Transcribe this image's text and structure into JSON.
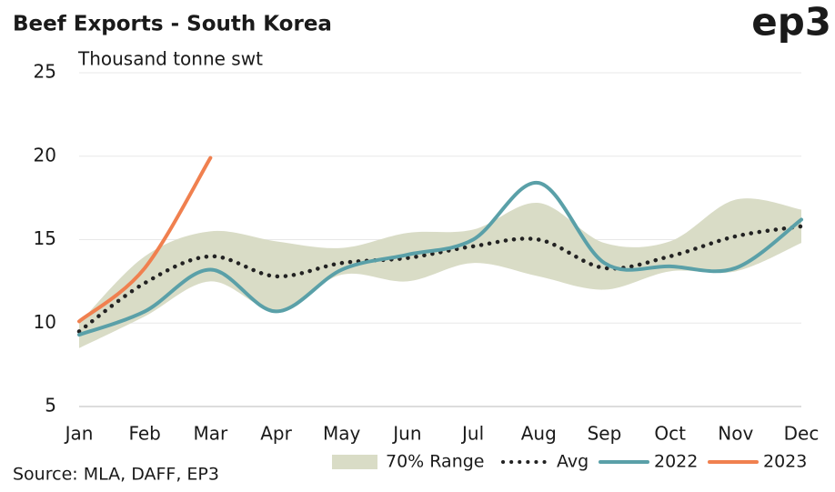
{
  "chart_data": {
    "type": "line",
    "title": "Beef Exports - South Korea",
    "subtitle": "Thousand tonne swt",
    "logo": "ep3",
    "source": "Source: MLA, DAFF, EP3",
    "categories": [
      "Jan",
      "Feb",
      "Mar",
      "Apr",
      "May",
      "Jun",
      "Jul",
      "Aug",
      "Sep",
      "Oct",
      "Nov",
      "Dec"
    ],
    "ylim": [
      5,
      25
    ],
    "yticks": [
      5,
      10,
      15,
      20,
      25
    ],
    "grid": true,
    "legend": "bottom",
    "series": [
      {
        "name": "70% Range",
        "color": "#d9dcc6",
        "lower": [
          8.5,
          10.4,
          12.5,
          10.8,
          12.9,
          12.5,
          13.6,
          12.8,
          12.0,
          13.1,
          13.1,
          14.8
        ],
        "upper": [
          10.0,
          14.0,
          15.5,
          14.9,
          14.5,
          15.4,
          15.6,
          17.2,
          14.8,
          14.9,
          17.4,
          16.8
        ]
      },
      {
        "name": "Avg",
        "color": "#222222",
        "dash": "dotted",
        "values": [
          9.5,
          12.4,
          14.0,
          12.8,
          13.6,
          13.9,
          14.6,
          15.0,
          13.3,
          14.0,
          15.2,
          15.8
        ]
      },
      {
        "name": "2022",
        "color": "#5aa0a8",
        "values": [
          9.3,
          10.7,
          13.2,
          10.7,
          13.2,
          14.1,
          15.0,
          18.4,
          13.6,
          13.4,
          13.3,
          16.2
        ]
      },
      {
        "name": "2023",
        "color": "#f0804f",
        "values": [
          10.1,
          13.3,
          19.9,
          null,
          null,
          null,
          null,
          null,
          null,
          null,
          null,
          null
        ]
      }
    ]
  }
}
